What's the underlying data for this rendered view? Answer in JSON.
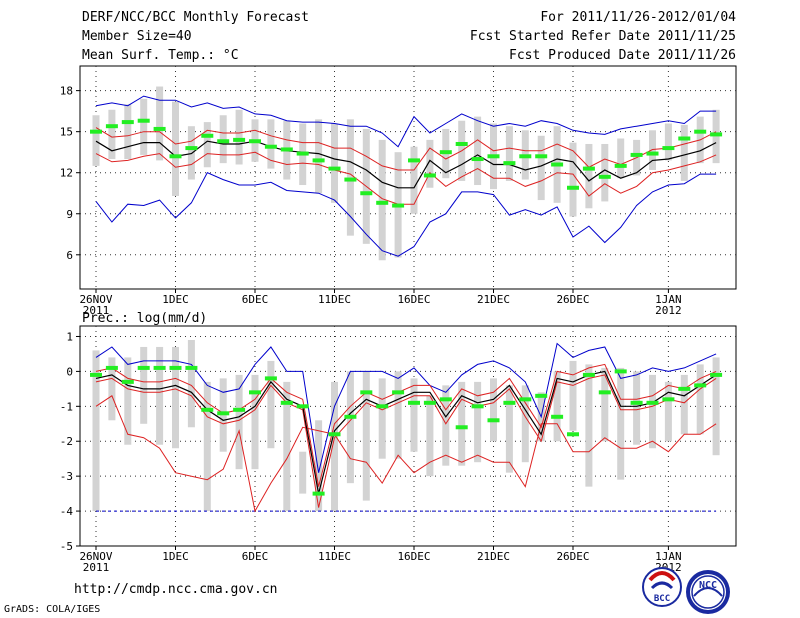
{
  "header": {
    "title": "DERF/NCC/BCC Monthly Forecast",
    "member_size": "Member Size=40",
    "variable": "Mean Surf. Temp.: °C",
    "forecast_period": "For 2011/11/26-2012/01/04",
    "start_date": "Fcst Started Refer Date 2011/11/25",
    "produced_date": "Fcst Produced Date 2011/11/26"
  },
  "footer": {
    "url": "http://cmdp.ncc.cma.gov.cn",
    "credit": "GrADS: COLA/IGES",
    "logo_bcc_text": "BCC",
    "logo_ncc_text": "NCC"
  },
  "colors": {
    "box": "#d3d3d3",
    "median": "#22ee22",
    "mean": "#000000",
    "spread": "#dd2222",
    "envelope": "#0000cc",
    "dashed": "#0000cc",
    "grid": "#333333"
  },
  "chart_data": [
    {
      "type": "box",
      "title": "Mean Surf. Temp.: °C",
      "xlabel": "",
      "ylabel": "",
      "ylim": [
        3.5,
        19.8
      ],
      "yticks": [
        6,
        9,
        12,
        15,
        18
      ],
      "x_tick_labels": [
        {
          "day": 1,
          "label": "26NOV",
          "sub": "2011"
        },
        {
          "day": 6,
          "label": "1DEC",
          "sub": ""
        },
        {
          "day": 11,
          "label": "6DEC",
          "sub": ""
        },
        {
          "day": 16,
          "label": "11DEC",
          "sub": ""
        },
        {
          "day": 21,
          "label": "16DEC",
          "sub": ""
        },
        {
          "day": 26,
          "label": "21DEC",
          "sub": ""
        },
        {
          "day": 31,
          "label": "26DEC",
          "sub": ""
        },
        {
          "day": 37,
          "label": "1JAN",
          "sub": "2012"
        }
      ],
      "days": [
        1,
        2,
        3,
        4,
        5,
        6,
        7,
        8,
        9,
        10,
        11,
        12,
        13,
        14,
        15,
        16,
        17,
        18,
        19,
        20,
        21,
        22,
        23,
        24,
        25,
        26,
        27,
        28,
        29,
        30,
        31,
        32,
        33,
        34,
        35,
        36,
        37,
        38,
        39,
        40
      ],
      "series": [
        {
          "name": "box_top",
          "values": [
            16.2,
            16.6,
            17.0,
            17.4,
            18.3,
            17.2,
            15.4,
            15.7,
            16.2,
            16.6,
            15.9,
            15.9,
            15.8,
            15.6,
            15.9,
            15.6,
            15.9,
            15.2,
            14.4,
            13.5,
            13.9,
            14.4,
            15.2,
            15.8,
            16.1,
            15.6,
            15.4,
            15.1,
            14.7,
            15.4,
            14.2,
            14.1,
            14.1,
            14.5,
            14.4,
            15.1,
            15.6,
            15.5,
            16.1,
            16.6
          ]
        },
        {
          "name": "box_bottom",
          "values": [
            12.5,
            13.0,
            13.0,
            13.3,
            12.9,
            10.3,
            11.5,
            12.4,
            12.7,
            12.6,
            12.8,
            12.3,
            11.5,
            11.1,
            10.5,
            9.8,
            7.4,
            6.8,
            5.6,
            5.8,
            9.0,
            10.9,
            11.6,
            11.4,
            11.1,
            10.8,
            11.4,
            11.5,
            10.0,
            9.8,
            8.8,
            9.4,
            9.9,
            11.6,
            11.8,
            12.2,
            12.9,
            11.4,
            12.7,
            12.7
          ]
        },
        {
          "name": "median",
          "values": [
            15.0,
            15.4,
            15.7,
            15.8,
            15.2,
            13.2,
            13.8,
            14.7,
            14.3,
            14.4,
            14.3,
            13.9,
            13.7,
            13.4,
            12.9,
            12.3,
            11.5,
            10.5,
            9.8,
            9.6,
            12.9,
            11.8,
            13.5,
            14.1,
            13.0,
            13.2,
            12.7,
            13.2,
            13.2,
            12.6,
            10.9,
            12.3,
            11.7,
            12.5,
            13.3,
            13.4,
            13.8,
            14.5,
            15.0,
            14.8
          ]
        },
        {
          "name": "mean",
          "values": [
            14.3,
            13.6,
            13.9,
            14.2,
            14.2,
            13.2,
            13.4,
            14.3,
            14.1,
            14.1,
            14.3,
            13.9,
            13.6,
            13.5,
            13.4,
            13.0,
            12.8,
            12.2,
            11.3,
            10.9,
            10.9,
            12.9,
            12.0,
            12.6,
            13.3,
            12.6,
            12.6,
            12.2,
            12.5,
            13.0,
            12.8,
            11.4,
            12.2,
            11.6,
            12.0,
            12.9,
            13.0,
            13.3,
            13.6,
            14.2
          ]
        },
        {
          "name": "mean_plus_sd",
          "values": [
            15.3,
            14.6,
            14.7,
            15.0,
            15.0,
            14.1,
            14.3,
            15.1,
            14.9,
            14.9,
            15.1,
            14.7,
            14.4,
            14.2,
            14.2,
            13.8,
            13.8,
            13.2,
            12.5,
            12.2,
            12.2,
            13.8,
            13.0,
            13.6,
            14.4,
            13.6,
            13.8,
            13.6,
            13.6,
            14.1,
            13.6,
            12.4,
            13.0,
            12.6,
            13.1,
            13.7,
            13.8,
            14.1,
            14.4,
            15.0
          ]
        },
        {
          "name": "mean_minus_sd",
          "values": [
            13.4,
            12.8,
            12.9,
            13.2,
            13.4,
            12.4,
            12.6,
            13.4,
            13.3,
            13.3,
            13.5,
            12.9,
            12.6,
            12.7,
            12.6,
            12.2,
            11.9,
            11.0,
            10.1,
            9.7,
            9.7,
            12.0,
            11.0,
            11.7,
            12.3,
            11.6,
            11.6,
            11.0,
            11.4,
            12.0,
            11.9,
            10.3,
            11.2,
            10.5,
            11.0,
            12.0,
            12.2,
            12.5,
            12.8,
            13.3
          ]
        },
        {
          "name": "max",
          "values": [
            16.9,
            17.1,
            16.9,
            17.6,
            17.3,
            17.3,
            16.8,
            17.1,
            16.7,
            16.8,
            16.3,
            16.2,
            15.8,
            15.7,
            15.7,
            15.6,
            15.4,
            15.4,
            14.9,
            13.9,
            16.1,
            14.9,
            15.6,
            16.3,
            15.8,
            15.4,
            15.6,
            15.4,
            15.8,
            15.6,
            15.1,
            14.9,
            14.8,
            15.2,
            15.4,
            15.6,
            15.8,
            15.6,
            16.5,
            16.5
          ]
        },
        {
          "name": "min",
          "values": [
            9.9,
            8.4,
            9.7,
            9.6,
            10.0,
            8.7,
            9.8,
            12.0,
            11.5,
            11.1,
            11.1,
            11.3,
            10.7,
            10.6,
            10.5,
            10.0,
            8.8,
            7.5,
            6.3,
            5.9,
            6.6,
            8.4,
            9.0,
            10.6,
            10.6,
            10.4,
            8.9,
            9.3,
            8.9,
            9.5,
            7.3,
            8.1,
            6.9,
            8.0,
            9.6,
            10.6,
            11.1,
            11.2,
            11.9,
            11.9
          ]
        }
      ]
    },
    {
      "type": "box",
      "title": "Prec.: log(mm/d)",
      "xlabel": "",
      "ylabel": "",
      "ylim": [
        -5,
        1.3
      ],
      "yticks": [
        -5,
        -4,
        -3,
        -2,
        -1,
        0,
        1
      ],
      "floor_value": -4,
      "x_tick_labels": [
        {
          "day": 1,
          "label": "26NOV",
          "sub": "2011"
        },
        {
          "day": 6,
          "label": "1DEC",
          "sub": ""
        },
        {
          "day": 11,
          "label": "6DEC",
          "sub": ""
        },
        {
          "day": 16,
          "label": "11DEC",
          "sub": ""
        },
        {
          "day": 21,
          "label": "16DEC",
          "sub": ""
        },
        {
          "day": 26,
          "label": "21DEC",
          "sub": ""
        },
        {
          "day": 31,
          "label": "26DEC",
          "sub": ""
        },
        {
          "day": 37,
          "label": "1JAN",
          "sub": "2012"
        }
      ],
      "days": [
        1,
        2,
        3,
        4,
        5,
        6,
        7,
        8,
        9,
        10,
        11,
        12,
        13,
        14,
        15,
        16,
        17,
        18,
        19,
        20,
        21,
        22,
        23,
        24,
        25,
        26,
        27,
        28,
        29,
        30,
        31,
        32,
        33,
        34,
        35,
        36,
        37,
        38,
        39,
        40
      ],
      "series": [
        {
          "name": "box_top",
          "values": [
            0.6,
            0.4,
            0.4,
            0.7,
            0.7,
            0.7,
            0.9,
            -0.3,
            -0.2,
            -0.1,
            -0.1,
            0.3,
            -0.3,
            -2.3,
            -1.4,
            -0.3,
            0.0,
            0.0,
            -0.2,
            0.0,
            -0.2,
            -0.7,
            -0.4,
            -0.3,
            -0.3,
            -0.2,
            -0.4,
            -0.4,
            -0.6,
            0.0,
            0.3,
            0.2,
            0.1,
            0.1,
            0.0,
            -0.1,
            -0.3,
            -0.1,
            0.2,
            0.4
          ]
        },
        {
          "name": "box_bottom",
          "values": [
            -4.0,
            -1.4,
            -2.1,
            -1.5,
            -2.1,
            -2.2,
            -1.6,
            -4.0,
            -2.3,
            -2.8,
            -2.8,
            -2.2,
            -4.0,
            -3.5,
            -4.0,
            -4.0,
            -3.2,
            -3.7,
            -2.5,
            -2.5,
            -2.3,
            -3.0,
            -2.7,
            -2.7,
            -2.6,
            -2.0,
            -2.9,
            -2.6,
            -2.0,
            -2.0,
            -1.7,
            -3.3,
            -2.0,
            -3.1,
            -2.1,
            -2.2,
            -2.0,
            -1.8,
            -1.8,
            -2.4
          ]
        },
        {
          "name": "median",
          "values": [
            -0.1,
            0.1,
            -0.3,
            0.1,
            0.1,
            0.1,
            0.1,
            -1.1,
            -1.2,
            -1.1,
            -0.6,
            -0.2,
            -0.9,
            -1.0,
            -3.5,
            -1.8,
            -1.3,
            -0.6,
            -1.0,
            -0.6,
            -0.9,
            -0.9,
            -0.8,
            -1.6,
            -1.0,
            -1.4,
            -0.9,
            -0.8,
            -0.7,
            -1.3,
            -1.8,
            -0.1,
            -0.6,
            0.0,
            -0.9,
            -0.9,
            -0.8,
            -0.5,
            -0.4,
            -0.1
          ]
        },
        {
          "name": "mean",
          "values": [
            -0.2,
            -0.1,
            -0.4,
            -0.5,
            -0.5,
            -0.4,
            -0.6,
            -1.1,
            -1.4,
            -1.3,
            -1.0,
            -0.3,
            -0.8,
            -1.0,
            -3.5,
            -1.7,
            -1.2,
            -0.8,
            -1.0,
            -0.8,
            -0.6,
            -0.6,
            -1.3,
            -0.7,
            -0.9,
            -0.8,
            -0.4,
            -1.1,
            -1.8,
            -0.2,
            -0.3,
            -0.1,
            0.0,
            -1.0,
            -1.0,
            -0.9,
            -0.6,
            -0.7,
            -0.4,
            -0.1
          ]
        },
        {
          "name": "mean_plus_sd",
          "values": [
            0.0,
            0.1,
            -0.2,
            -0.3,
            -0.3,
            -0.2,
            -0.4,
            -0.9,
            -1.2,
            -1.1,
            -0.8,
            -0.2,
            -0.6,
            -0.8,
            -3.3,
            -1.5,
            -1.0,
            -0.6,
            -0.8,
            -0.6,
            -0.4,
            -0.4,
            -1.1,
            -0.5,
            -0.7,
            -0.6,
            -0.2,
            -0.9,
            -1.6,
            0.0,
            -0.1,
            0.1,
            0.2,
            -0.8,
            -0.8,
            -0.7,
            -0.4,
            -0.5,
            -0.2,
            0.0
          ]
        },
        {
          "name": "mean_minus_sd",
          "values": [
            -0.3,
            -0.2,
            -0.5,
            -0.6,
            -0.6,
            -0.5,
            -0.7,
            -1.3,
            -1.5,
            -1.4,
            -1.1,
            -0.4,
            -0.9,
            -1.1,
            -3.9,
            -1.9,
            -1.4,
            -0.9,
            -1.1,
            -0.9,
            -0.7,
            -0.7,
            -1.5,
            -0.8,
            -1.0,
            -0.9,
            -0.5,
            -1.3,
            -2.0,
            -0.3,
            -0.4,
            -0.2,
            -0.1,
            -1.1,
            -1.1,
            -1.0,
            -0.8,
            -0.9,
            -0.5,
            -0.2
          ]
        },
        {
          "name": "max",
          "values": [
            0.4,
            0.7,
            0.2,
            0.3,
            0.3,
            0.3,
            0.2,
            -0.4,
            -0.6,
            -0.5,
            0.2,
            0.7,
            0.0,
            0.0,
            -2.9,
            -1.0,
            0.0,
            0.0,
            0.0,
            -0.2,
            0.1,
            -0.4,
            -0.6,
            -0.1,
            0.2,
            0.3,
            0.1,
            -0.3,
            -1.3,
            0.8,
            0.4,
            0.6,
            0.7,
            -0.2,
            -0.1,
            0.1,
            0.0,
            0.1,
            0.3,
            0.5
          ]
        },
        {
          "name": "min",
          "values": [
            -1.0,
            -0.7,
            -1.8,
            -1.9,
            -2.2,
            -2.9,
            -3.0,
            -3.1,
            -2.8,
            -1.7,
            -4.0,
            -3.2,
            -2.5,
            -1.6,
            -1.7,
            -1.8,
            -2.5,
            -2.6,
            -3.2,
            -2.4,
            -2.9,
            -2.6,
            -2.4,
            -2.6,
            -2.4,
            -2.6,
            -2.6,
            -3.3,
            -1.5,
            -1.5,
            -2.3,
            -2.3,
            -1.9,
            -2.2,
            -2.2,
            -2.0,
            -2.3,
            -1.8,
            -1.8,
            -1.5
          ]
        }
      ]
    }
  ]
}
